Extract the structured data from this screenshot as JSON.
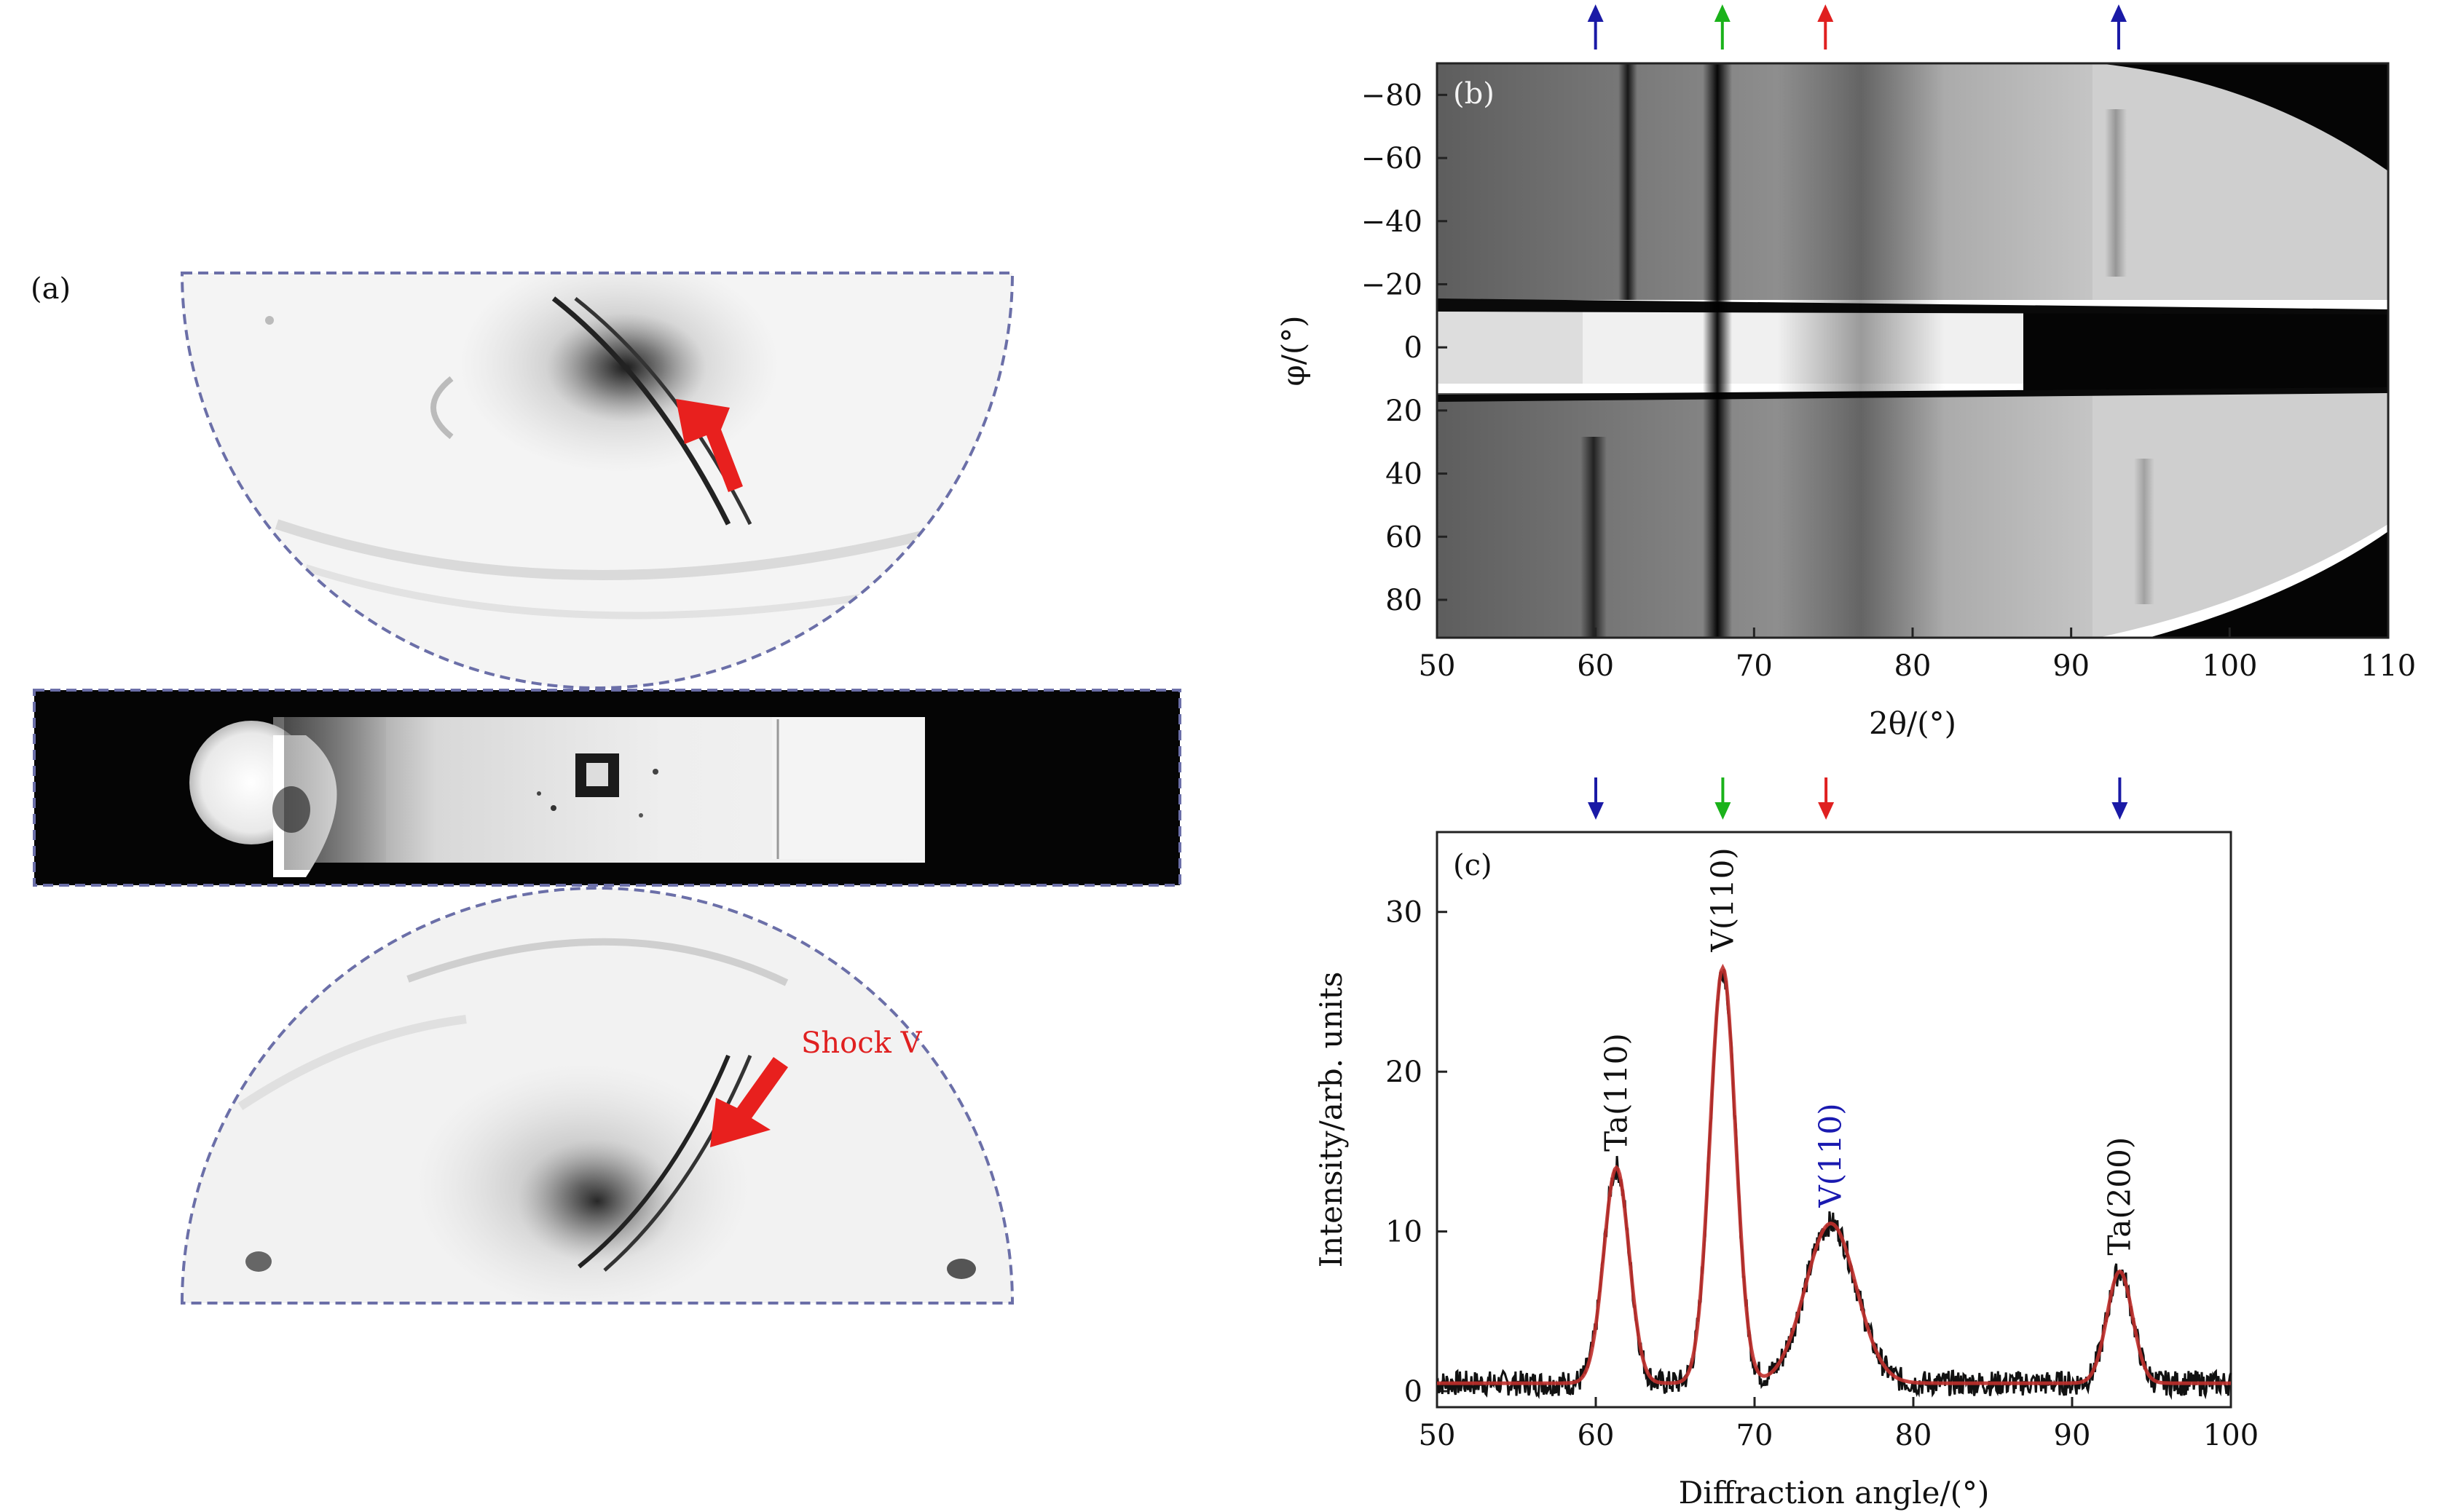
{
  "panel_a": {
    "label": "(a)",
    "annotation": "Shock V",
    "colors": {
      "frame": "#6b6fa8",
      "arrow": "#e8201e",
      "annotation": "#e02020"
    }
  },
  "panel_b": {
    "label": "(b)",
    "xlabel": "2θ/(°)",
    "ylabel": "φ/(°)",
    "x_ticks": [
      "50",
      "60",
      "70",
      "80",
      "90",
      "100",
      "110"
    ],
    "y_ticks": [
      "−80",
      "−60",
      "−40",
      "−20",
      "0",
      "20",
      "40",
      "60",
      "80"
    ],
    "xlim": [
      50,
      110
    ],
    "ylim": [
      -90,
      92
    ]
  },
  "panel_c": {
    "label": "(c)",
    "peak_labels": [
      "Ta(110)",
      "V(110)",
      "V(110)",
      "Ta(200)"
    ]
  },
  "top_arrows": [
    {
      "x": 60,
      "color": "#1a1aa6"
    },
    {
      "x": 68,
      "color": "#1ab21a"
    },
    {
      "x": 74.5,
      "color": "#e02020"
    },
    {
      "x": 93,
      "color": "#1a1aa6"
    }
  ],
  "chart_data": {
    "type": "line",
    "xlabel": "Diffraction angle/(°)",
    "ylabel": "Intensity/arb. units",
    "x_ticks": [
      "50",
      "60",
      "70",
      "80",
      "90",
      "100"
    ],
    "y_ticks": [
      "0",
      "10",
      "20",
      "30"
    ],
    "xlim": [
      50,
      100
    ],
    "ylim": [
      -1,
      35
    ],
    "baseline": 0.5,
    "peaks": [
      {
        "center": 61.3,
        "height": 13.5,
        "sigma": 0.8,
        "label": "Ta(110)"
      },
      {
        "center": 68.0,
        "height": 26.0,
        "sigma": 0.8,
        "label": "V(110)"
      },
      {
        "center": 74.8,
        "height": 10.0,
        "sigma": 1.6,
        "label": "V(110)"
      },
      {
        "center": 93.0,
        "height": 7.0,
        "sigma": 0.8,
        "label": "Ta(200)"
      }
    ],
    "series_colors": {
      "measured": "#111111",
      "fit": "#c0302c"
    },
    "legend": "none"
  }
}
